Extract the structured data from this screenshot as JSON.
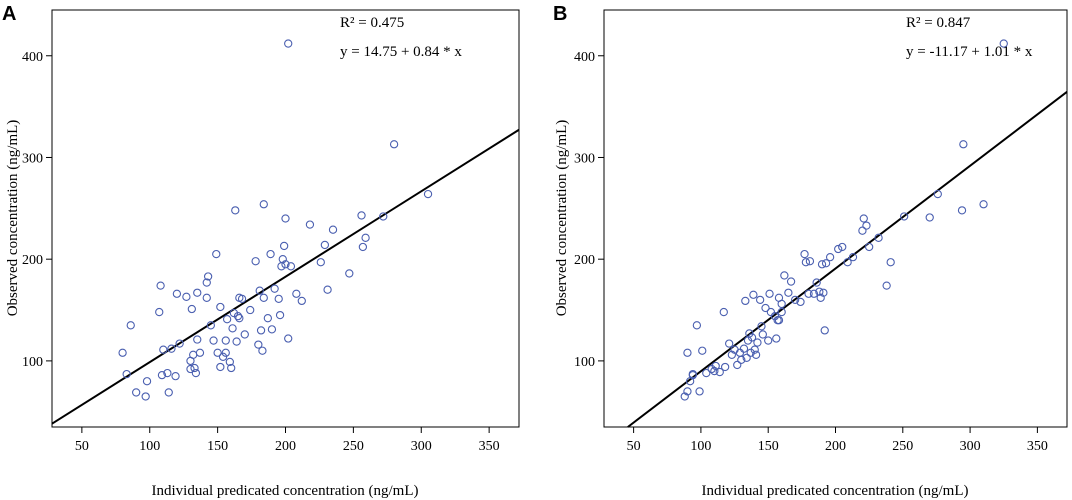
{
  "colors": {
    "point": "#4a5fb0",
    "line": "#000000",
    "frame": "#000000"
  },
  "chart_data": [
    {
      "type": "scatter",
      "panel": "A",
      "xlabel": "Individual predicated concentration (ng/mL)",
      "ylabel": "Observed concentration (ng/mL)",
      "xlim": [
        28,
        372
      ],
      "ylim": [
        35,
        445
      ],
      "xticks": [
        50,
        100,
        150,
        200,
        250,
        300,
        350
      ],
      "yticks": [
        100,
        200,
        300,
        400
      ],
      "annotations": {
        "r2": "R² = 0.475",
        "equation": "y = 14.75 + 0.84 * x"
      },
      "fit": {
        "intercept": 14.75,
        "slope": 0.84
      },
      "points": [
        [
          80,
          108
        ],
        [
          83,
          87
        ],
        [
          86,
          135
        ],
        [
          90,
          69
        ],
        [
          97,
          65
        ],
        [
          98,
          80
        ],
        [
          107,
          148
        ],
        [
          108,
          174
        ],
        [
          109,
          86
        ],
        [
          110,
          111
        ],
        [
          113,
          88
        ],
        [
          114,
          69
        ],
        [
          116,
          112
        ],
        [
          119,
          85
        ],
        [
          120,
          166
        ],
        [
          122,
          117
        ],
        [
          127,
          163
        ],
        [
          130,
          92
        ],
        [
          130,
          100
        ],
        [
          131,
          151
        ],
        [
          132,
          106
        ],
        [
          133,
          93
        ],
        [
          134,
          88
        ],
        [
          135,
          121
        ],
        [
          135,
          167
        ],
        [
          137,
          108
        ],
        [
          142,
          162
        ],
        [
          142,
          177
        ],
        [
          143,
          183
        ],
        [
          145,
          135
        ],
        [
          147,
          120
        ],
        [
          149,
          205
        ],
        [
          150,
          108
        ],
        [
          152,
          94
        ],
        [
          152,
          153
        ],
        [
          154,
          104
        ],
        [
          156,
          108
        ],
        [
          156,
          120
        ],
        [
          157,
          141
        ],
        [
          159,
          99
        ],
        [
          160,
          93
        ],
        [
          161,
          132
        ],
        [
          162,
          147
        ],
        [
          163,
          248
        ],
        [
          164,
          119
        ],
        [
          165,
          144
        ],
        [
          166,
          162
        ],
        [
          166,
          142
        ],
        [
          168,
          161
        ],
        [
          170,
          126
        ],
        [
          174,
          150
        ],
        [
          178,
          198
        ],
        [
          180,
          116
        ],
        [
          181,
          169
        ],
        [
          182,
          130
        ],
        [
          183,
          110
        ],
        [
          184,
          254
        ],
        [
          184,
          162
        ],
        [
          187,
          142
        ],
        [
          189,
          205
        ],
        [
          190,
          131
        ],
        [
          192,
          171
        ],
        [
          195,
          161
        ],
        [
          196,
          145
        ],
        [
          197,
          193
        ],
        [
          198,
          200
        ],
        [
          199,
          213
        ],
        [
          200,
          240
        ],
        [
          200,
          195
        ],
        [
          202,
          122
        ],
        [
          202,
          412
        ],
        [
          204,
          193
        ],
        [
          208,
          166
        ],
        [
          212,
          159
        ],
        [
          218,
          234
        ],
        [
          226,
          197
        ],
        [
          229,
          214
        ],
        [
          231,
          170
        ],
        [
          235,
          229
        ],
        [
          247,
          186
        ],
        [
          256,
          243
        ],
        [
          257,
          212
        ],
        [
          259,
          221
        ],
        [
          272,
          242
        ],
        [
          280,
          313
        ],
        [
          305,
          264
        ]
      ]
    },
    {
      "type": "scatter",
      "panel": "B",
      "xlabel": "Individual predicated concentration (ng/mL)",
      "ylabel": "Observed concentration (ng/mL)",
      "xlim": [
        28,
        372
      ],
      "ylim": [
        35,
        445
      ],
      "xticks": [
        50,
        100,
        150,
        200,
        250,
        300,
        350
      ],
      "yticks": [
        100,
        200,
        300,
        400
      ],
      "annotations": {
        "r2": "R² = 0.847",
        "equation": "y = -11.17 + 1.01 * x"
      },
      "fit": {
        "intercept": -11.17,
        "slope": 1.01
      },
      "points": [
        [
          88,
          65
        ],
        [
          90,
          70
        ],
        [
          90,
          108
        ],
        [
          92,
          80
        ],
        [
          94,
          87
        ],
        [
          94,
          86
        ],
        [
          97,
          135
        ],
        [
          99,
          70
        ],
        [
          101,
          110
        ],
        [
          104,
          88
        ],
        [
          108,
          92
        ],
        [
          110,
          90
        ],
        [
          111,
          95
        ],
        [
          114,
          89
        ],
        [
          117,
          148
        ],
        [
          118,
          94
        ],
        [
          121,
          117
        ],
        [
          123,
          106
        ],
        [
          125,
          111
        ],
        [
          127,
          96
        ],
        [
          129,
          108
        ],
        [
          130,
          101
        ],
        [
          132,
          112
        ],
        [
          133,
          159
        ],
        [
          134,
          103
        ],
        [
          135,
          120
        ],
        [
          136,
          127
        ],
        [
          137,
          108
        ],
        [
          138,
          123
        ],
        [
          139,
          165
        ],
        [
          140,
          111
        ],
        [
          141,
          106
        ],
        [
          142,
          118
        ],
        [
          144,
          160
        ],
        [
          145,
          134
        ],
        [
          146,
          126
        ],
        [
          148,
          152
        ],
        [
          150,
          120
        ],
        [
          151,
          166
        ],
        [
          152,
          148
        ],
        [
          155,
          144
        ],
        [
          156,
          122
        ],
        [
          157,
          140
        ],
        [
          158,
          140
        ],
        [
          158,
          162
        ],
        [
          160,
          148
        ],
        [
          160,
          156
        ],
        [
          162,
          184
        ],
        [
          165,
          167
        ],
        [
          167,
          178
        ],
        [
          170,
          160
        ],
        [
          174,
          158
        ],
        [
          177,
          205
        ],
        [
          178,
          197
        ],
        [
          180,
          166
        ],
        [
          181,
          198
        ],
        [
          184,
          166
        ],
        [
          186,
          177
        ],
        [
          188,
          168
        ],
        [
          189,
          162
        ],
        [
          190,
          195
        ],
        [
          191,
          167
        ],
        [
          192,
          130
        ],
        [
          193,
          196
        ],
        [
          196,
          202
        ],
        [
          202,
          210
        ],
        [
          205,
          212
        ],
        [
          209,
          197
        ],
        [
          213,
          202
        ],
        [
          220,
          228
        ],
        [
          221,
          240
        ],
        [
          223,
          233
        ],
        [
          225,
          212
        ],
        [
          232,
          221
        ],
        [
          238,
          174
        ],
        [
          241,
          197
        ],
        [
          251,
          242
        ],
        [
          270,
          241
        ],
        [
          276,
          264
        ],
        [
          294,
          248
        ],
        [
          295,
          313
        ],
        [
          310,
          254
        ],
        [
          325,
          412
        ]
      ]
    }
  ]
}
